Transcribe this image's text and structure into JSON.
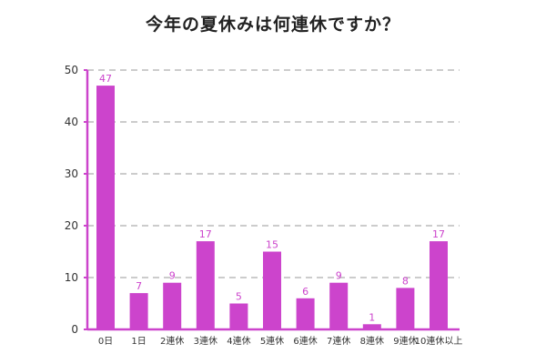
{
  "colors": {
    "bar": "#cc44cc",
    "axis": "#cc44cc",
    "grid": "#bbbbbb",
    "tick_text": "#333333",
    "value_label": "#cc44cc"
  },
  "chart_data": {
    "type": "bar",
    "title": "今年の夏休みは何連休ですか？",
    "xlabel": "",
    "ylabel": "",
    "ylim": [
      0,
      50
    ],
    "yticks": [
      0,
      10,
      20,
      30,
      40,
      50
    ],
    "grid": true,
    "categories": [
      "0日",
      "1日",
      "2連休",
      "3連休",
      "4連休",
      "5連休",
      "6連休",
      "7連休",
      "8連休",
      "9連休",
      "10連休以上"
    ],
    "values": [
      47,
      7,
      9,
      17,
      5,
      15,
      6,
      9,
      1,
      8,
      17
    ]
  }
}
